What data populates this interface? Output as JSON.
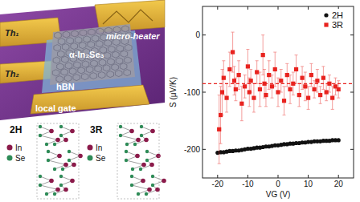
{
  "chart_data": {
    "type": "scatter",
    "x_label": "VG (V)",
    "y_label": "S (μV/K)",
    "xlim": [
      -25,
      25
    ],
    "xticks": [
      -20,
      -10,
      0,
      10,
      20
    ],
    "ylim": [
      -250,
      50
    ],
    "yticks": [
      -200,
      -100,
      0
    ],
    "legend": "upper right",
    "grid": false,
    "hlines": [
      {
        "value": -85,
        "color": "#e8231f",
        "line_style": "dashed"
      }
    ],
    "series": [
      {
        "name": "2H",
        "color": "#111111",
        "marker": "circle",
        "x": [
          -20,
          -19,
          -18,
          -17,
          -16,
          -15,
          -14,
          -13,
          -12,
          -11,
          -10,
          -9,
          -8,
          -7,
          -6,
          -5,
          -4,
          -3,
          -2,
          -1,
          0,
          1,
          2,
          3,
          4,
          5,
          6,
          7,
          8,
          9,
          10,
          11,
          12,
          13,
          14,
          15,
          16,
          17,
          18,
          19,
          20
        ],
        "values": [
          -206,
          -205,
          -205,
          -204,
          -203,
          -203,
          -202,
          -202,
          -201,
          -200,
          -199,
          -199,
          -198,
          -197,
          -197,
          -196,
          -195,
          -195,
          -194,
          -193,
          -193,
          -192,
          -191,
          -191,
          -190,
          -190,
          -189,
          -189,
          -188,
          -188,
          -187,
          -187,
          -186,
          -186,
          -186,
          -185,
          -185,
          -185,
          -184,
          -184,
          -184
        ]
      },
      {
        "name": "3R",
        "color": "#e8231f",
        "marker": "square",
        "x": [
          -19.5,
          -19,
          -18.5,
          -18,
          -17,
          -16,
          -15,
          -14.5,
          -14,
          -13,
          -12,
          -11,
          -10,
          -9.5,
          -9,
          -8,
          -7,
          -6,
          -5,
          -4.5,
          -4,
          -3,
          -2,
          -1,
          0,
          1,
          2,
          3,
          4,
          5,
          6,
          7,
          8,
          9,
          10,
          11,
          12,
          13,
          14,
          15,
          16,
          17,
          18,
          19,
          20
        ],
        "values": [
          -165,
          -140,
          -100,
          -75,
          -110,
          -60,
          -30,
          -80,
          -95,
          -70,
          -120,
          -90,
          -55,
          -100,
          -80,
          -110,
          -65,
          -95,
          -35,
          -85,
          -105,
          -70,
          -90,
          -60,
          -100,
          -80,
          -115,
          -70,
          -95,
          -85,
          -60,
          -105,
          -75,
          -90,
          -110,
          -70,
          -95,
          -80,
          -105,
          -75,
          -100,
          -85,
          -110,
          -90,
          -95
        ],
        "errors": [
          60,
          50,
          40,
          30,
          25,
          30,
          35,
          25,
          20,
          25,
          30,
          20,
          30,
          25,
          20,
          25,
          20,
          30,
          35,
          25,
          20,
          25,
          20,
          30,
          25,
          20,
          25,
          20,
          25,
          20,
          25,
          20,
          20,
          25,
          20,
          20,
          15,
          20,
          15,
          20,
          15,
          15,
          20,
          15,
          15
        ]
      }
    ]
  },
  "schematic": {
    "labels": [
      "Th₁",
      "Th₂",
      "micro-heater",
      "α-In₂Se₃",
      "hBN",
      "local gate"
    ]
  },
  "structures": [
    {
      "label": "2H",
      "species": [
        "In",
        "Se"
      ],
      "colors": [
        "#8b1a4a",
        "#2e8b57"
      ]
    },
    {
      "label": "3R",
      "species": [
        "In",
        "Se"
      ],
      "colors": [
        "#8b1a4a",
        "#2e8b57"
      ]
    }
  ]
}
